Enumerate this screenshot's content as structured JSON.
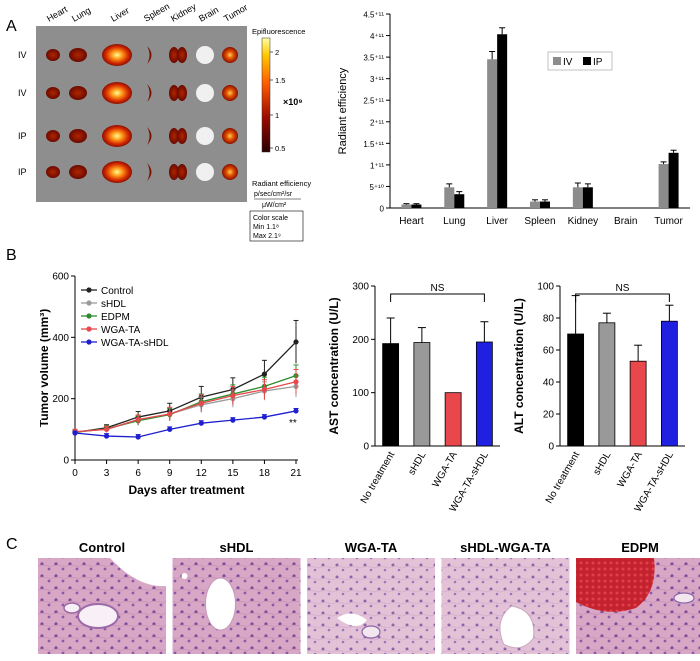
{
  "panels": {
    "a": "A",
    "b": "B",
    "c": "C"
  },
  "imaging": {
    "organs": [
      "Heart",
      "Lung",
      "Liver",
      "Spleen",
      "Kidney",
      "Brain",
      "Tumor"
    ],
    "rows": [
      "IV",
      "IV",
      "IP",
      "IP"
    ],
    "colorbar": {
      "title": "Epifluorescence",
      "ticks": [
        "2",
        "1.5",
        "1",
        "0.5"
      ],
      "scale_label": "×10⁹",
      "unit_title": "Radiant efficiency",
      "unit_num": "p/sec/cm²/sr",
      "unit_den": "μW/cm²",
      "box_lines": [
        "Color scale",
        "Min 1.1⁸",
        "Max 2.1⁹"
      ]
    }
  },
  "chart_data": [
    {
      "type": "bar",
      "ylabel": "Radiant efficiency",
      "categories": [
        "Heart",
        "Lung",
        "Liver",
        "Spleen",
        "Kidney",
        "Brain",
        "Tumor"
      ],
      "series": [
        {
          "name": "IV",
          "color": "#8c8c8c",
          "values": [
            8000000000.0,
            48000000000.0,
            345000000000.0,
            15000000000.0,
            48000000000.0,
            0,
            102000000000.0
          ],
          "errors": [
            2000000000.0,
            8000000000.0,
            18000000000.0,
            4000000000.0,
            10000000000.0,
            0,
            5000000000.0
          ]
        },
        {
          "name": "IP",
          "color": "#000000",
          "values": [
            8000000000.0,
            32000000000.0,
            403000000000.0,
            15000000000.0,
            48000000000.0,
            0,
            128000000000.0
          ],
          "errors": [
            2000000000.0,
            6000000000.0,
            15000000000.0,
            4000000000.0,
            8000000000.0,
            0,
            6000000000.0
          ]
        }
      ],
      "ylim": [
        0,
        450000000000.0
      ],
      "yticks": [
        "0",
        "5⁺¹⁰",
        "1⁺¹¹",
        "1.5⁺¹¹",
        "2⁺¹¹",
        "2.5⁺¹¹",
        "3⁺¹¹",
        "3.5⁺¹¹",
        "4⁺¹¹",
        "4.5⁺¹¹"
      ],
      "legend": "top-right"
    },
    {
      "type": "line",
      "xlabel": "Days after treatment",
      "ylabel": "Tumor volume (mm³)",
      "x": [
        0,
        3,
        6,
        9,
        12,
        15,
        18,
        21
      ],
      "xlim": [
        0,
        21
      ],
      "ylim": [
        0,
        600
      ],
      "yticks": [
        0,
        200,
        400,
        600
      ],
      "annotation": "**",
      "legend": "top-left",
      "series": [
        {
          "name": "Control",
          "color": "#222222",
          "values": [
            90,
            105,
            140,
            160,
            205,
            230,
            280,
            385
          ],
          "errors": [
            8,
            10,
            18,
            25,
            35,
            38,
            45,
            70
          ]
        },
        {
          "name": "sHDL",
          "color": "#9a9a9a",
          "values": [
            92,
            100,
            130,
            150,
            180,
            200,
            225,
            240
          ],
          "errors": [
            8,
            10,
            15,
            20,
            25,
            28,
            30,
            35
          ]
        },
        {
          "name": "EDPM",
          "color": "#2e8b2e",
          "values": [
            90,
            102,
            128,
            148,
            190,
            215,
            240,
            275
          ],
          "errors": [
            8,
            10,
            15,
            20,
            25,
            30,
            30,
            35
          ]
        },
        {
          "name": "WGA-TA",
          "color": "#e8484b",
          "values": [
            92,
            100,
            132,
            150,
            185,
            210,
            230,
            255
          ],
          "errors": [
            8,
            10,
            15,
            22,
            28,
            30,
            32,
            40
          ]
        },
        {
          "name": "WGA-TA-sHDL",
          "color": "#1f1fd0",
          "values": [
            88,
            78,
            75,
            100,
            120,
            130,
            140,
            160
          ],
          "errors": [
            6,
            8,
            8,
            8,
            8,
            8,
            8,
            8
          ]
        }
      ]
    },
    {
      "type": "bar",
      "ylabel": "AST concentration (U/L)",
      "categories": [
        "No treatment",
        "sHDL",
        "WGA-TA",
        "WGA-TA-sHDL"
      ],
      "colors": [
        "#000000",
        "#999999",
        "#e8484b",
        "#2020e0"
      ],
      "values": [
        192,
        194,
        100,
        195
      ],
      "errors": [
        48,
        28,
        0,
        38
      ],
      "ylim": [
        0,
        300
      ],
      "yticks": [
        0,
        100,
        200,
        300
      ],
      "annotation": "NS"
    },
    {
      "type": "bar",
      "ylabel": "ALT concentration (U/L)",
      "categories": [
        "No treatment",
        "sHDL",
        "WGA-TA",
        "WGA-TA-sHDL"
      ],
      "colors": [
        "#000000",
        "#999999",
        "#e8484b",
        "#2020e0"
      ],
      "values": [
        70,
        77,
        53,
        78
      ],
      "errors": [
        24,
        6,
        10,
        10
      ],
      "ylim": [
        0,
        100
      ],
      "yticks": [
        0,
        20,
        40,
        60,
        80,
        100
      ],
      "annotation": "NS"
    }
  ],
  "histology": {
    "titles": [
      "Control",
      "sHDL",
      "WGA-TA",
      "sHDL-WGA-TA",
      "EDPM"
    ]
  }
}
